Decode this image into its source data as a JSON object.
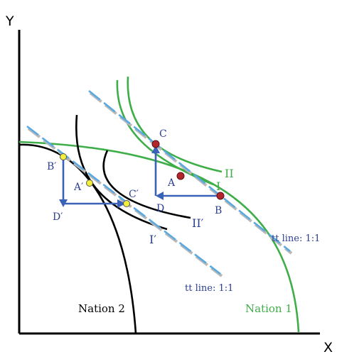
{
  "axes": {
    "y_label": "Y",
    "x_label": "X"
  },
  "nation1": {
    "name": "Nation 1",
    "color": "#3fae49",
    "indiff_low": "I",
    "indiff_high": "II",
    "points": {
      "production": "B",
      "consumption_pre": "A",
      "consumption_post": "C",
      "triangle_corner": "D"
    },
    "tt_line_label": "tt line: 1:1"
  },
  "nation2": {
    "name": "Nation 2",
    "color": "#000000",
    "indiff_low": "I′",
    "indiff_high": "II′",
    "points": {
      "production": "B′",
      "consumption_pre": "A′",
      "consumption_post": "C′",
      "triangle_corner": "D′"
    },
    "tt_line_label": "tt line: 1:1"
  },
  "colors": {
    "trade_triangle": "#3a62b8",
    "tt_line_dash": "#5aa9e0",
    "tt_line_shadow": "#b9b9b9",
    "nation1_point_fill": "#b3262b",
    "nation2_point_fill": "#f4ef3a",
    "indiff_label_nation2": "#2c3f8f"
  }
}
